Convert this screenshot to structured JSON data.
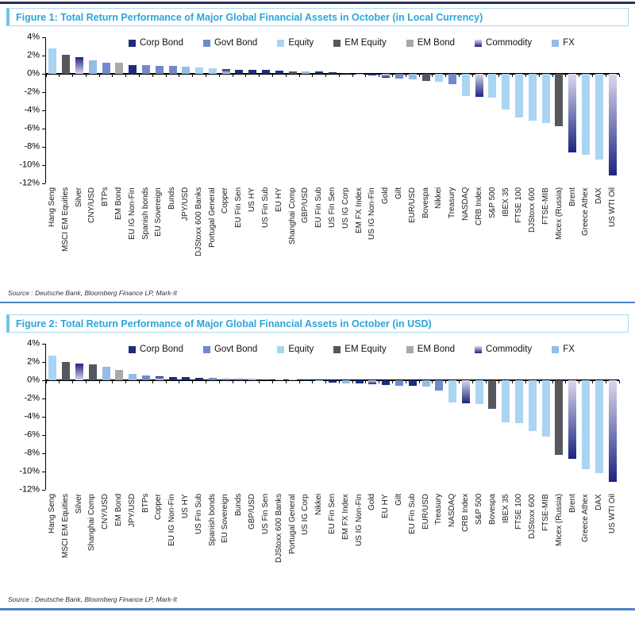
{
  "colors": {
    "Corp Bond": "#1c2e7b",
    "Govt Bond": "#7289cc",
    "Equity": "#aad5f2",
    "EM Equity": "#55575c",
    "EM Bond": "#a7a9ac",
    "Commodity": {
      "tip": "#1b2480",
      "base": "#dcd9ee"
    },
    "FX": "#94bce9"
  },
  "chart_data": [
    {
      "type": "bar",
      "title": "Figure 1: Total Return Performance of Major Global Financial Assets in October (in Local Currency)",
      "source": "Source : Deutsche Bank, Bloomberg Finance LP, Mark-It",
      "xlabel": "",
      "ylabel": "",
      "ylim": [
        -12,
        4
      ],
      "ytick_step": 2,
      "grid": false,
      "legend_position": "top",
      "legend": [
        "Corp Bond",
        "Govt Bond",
        "Equity",
        "EM Equity",
        "EM Bond",
        "Commodity",
        "FX"
      ],
      "bars": [
        {
          "label": "Hang Seng",
          "value": 2.8,
          "group": "Equity"
        },
        {
          "label": "MSCI EM Equities",
          "value": 2.1,
          "group": "EM Equity"
        },
        {
          "label": "Silver",
          "value": 1.8,
          "group": "Commodity"
        },
        {
          "label": "CNY/USD",
          "value": 1.5,
          "group": "FX"
        },
        {
          "label": "BTPs",
          "value": 1.25,
          "group": "Govt Bond"
        },
        {
          "label": "EM Bond",
          "value": 1.2,
          "group": "EM Bond"
        },
        {
          "label": "EU IG Non-Fin",
          "value": 1.0,
          "group": "Corp Bond"
        },
        {
          "label": "Spanish bonds",
          "value": 0.95,
          "group": "Govt Bond"
        },
        {
          "label": "EU Sovereign",
          "value": 0.9,
          "group": "Govt Bond"
        },
        {
          "label": "Bunds",
          "value": 0.9,
          "group": "Govt Bond"
        },
        {
          "label": "JPY/USD",
          "value": 0.75,
          "group": "FX"
        },
        {
          "label": "DJStoxx 600 Banks",
          "value": 0.7,
          "group": "Equity"
        },
        {
          "label": "Portugal General",
          "value": 0.65,
          "group": "Equity"
        },
        {
          "label": "Copper",
          "value": 0.5,
          "group": "Commodity"
        },
        {
          "label": "EU Fin Sen",
          "value": 0.45,
          "group": "Corp Bond"
        },
        {
          "label": "US HY",
          "value": 0.4,
          "group": "Corp Bond"
        },
        {
          "label": "US Fin Sub",
          "value": 0.4,
          "group": "Corp Bond"
        },
        {
          "label": "EU HY",
          "value": 0.35,
          "group": "Corp Bond"
        },
        {
          "label": "Shanghai Comp",
          "value": 0.3,
          "group": "EM Equity"
        },
        {
          "label": "GBP/USD",
          "value": 0.3,
          "group": "FX"
        },
        {
          "label": "EU Fin Sub",
          "value": 0.25,
          "group": "Corp Bond"
        },
        {
          "label": "US Fin Sen",
          "value": 0.2,
          "group": "Corp Bond"
        },
        {
          "label": "US IG Corp",
          "value": 0.1,
          "group": "Corp Bond"
        },
        {
          "label": "EM FX Index",
          "value": -0.1,
          "group": "FX"
        },
        {
          "label": "US IG Non-Fin",
          "value": -0.2,
          "group": "Corp Bond"
        },
        {
          "label": "Gold",
          "value": -0.4,
          "group": "Commodity"
        },
        {
          "label": "Gilt",
          "value": -0.5,
          "group": "Govt Bond"
        },
        {
          "label": "EUR/USD",
          "value": -0.6,
          "group": "FX"
        },
        {
          "label": "Bovespa",
          "value": -0.8,
          "group": "EM Equity"
        },
        {
          "label": "Nikkei",
          "value": -0.9,
          "group": "Equity"
        },
        {
          "label": "Treasury",
          "value": -1.1,
          "group": "Govt Bond"
        },
        {
          "label": "NASDAQ",
          "value": -2.4,
          "group": "Equity"
        },
        {
          "label": "CRB Index",
          "value": -2.5,
          "group": "Commodity"
        },
        {
          "label": "S&P 500",
          "value": -2.6,
          "group": "Equity"
        },
        {
          "label": "IBEX 35",
          "value": -3.9,
          "group": "Equity"
        },
        {
          "label": "FTSE 100",
          "value": -4.8,
          "group": "Equity"
        },
        {
          "label": "DJStoxx 600",
          "value": -5.1,
          "group": "Equity"
        },
        {
          "label": "FTSE-MIB",
          "value": -5.4,
          "group": "Equity"
        },
        {
          "label": "Micex (Russia)",
          "value": -5.7,
          "group": "EM Equity"
        },
        {
          "label": "Brent",
          "value": -8.6,
          "group": "Commodity"
        },
        {
          "label": "Greece Athex",
          "value": -8.9,
          "group": "Equity"
        },
        {
          "label": "DAX",
          "value": -9.4,
          "group": "Equity"
        },
        {
          "label": "US WTI Oil",
          "value": -11.1,
          "group": "Commodity"
        }
      ]
    },
    {
      "type": "bar",
      "title": "Figure 2: Total Return Performance of Major Global Financial Assets in October (in USD)",
      "source": "Source : Deutsche Bank, Bloomberg Finance LP, Mark-It",
      "xlabel": "",
      "ylabel": "",
      "ylim": [
        -12,
        4
      ],
      "ytick_step": 2,
      "grid": false,
      "legend_position": "top",
      "legend": [
        "Corp Bond",
        "Govt Bond",
        "Equity",
        "EM Equity",
        "EM Bond",
        "Commodity",
        "FX"
      ],
      "bars": [
        {
          "label": "Hang Seng",
          "value": 2.7,
          "group": "Equity"
        },
        {
          "label": "MSCI EM Equities",
          "value": 2.0,
          "group": "EM Equity"
        },
        {
          "label": "Silver",
          "value": 1.8,
          "group": "Commodity"
        },
        {
          "label": "Shanghai Comp",
          "value": 1.75,
          "group": "EM Equity"
        },
        {
          "label": "CNY/USD",
          "value": 1.5,
          "group": "FX"
        },
        {
          "label": "EM Bond",
          "value": 1.1,
          "group": "EM Bond"
        },
        {
          "label": "JPY/USD",
          "value": 0.7,
          "group": "FX"
        },
        {
          "label": "BTPs",
          "value": 0.5,
          "group": "Govt Bond"
        },
        {
          "label": "Copper",
          "value": 0.45,
          "group": "Commodity"
        },
        {
          "label": "EU IG Non-Fin",
          "value": 0.35,
          "group": "Corp Bond"
        },
        {
          "label": "US HY",
          "value": 0.35,
          "group": "Corp Bond"
        },
        {
          "label": "US Fin Sub",
          "value": 0.3,
          "group": "Corp Bond"
        },
        {
          "label": "Spanish bonds",
          "value": 0.25,
          "group": "Govt Bond"
        },
        {
          "label": "EU Sovereign",
          "value": 0.2,
          "group": "Govt Bond"
        },
        {
          "label": "Bunds",
          "value": 0.2,
          "group": "Govt Bond"
        },
        {
          "label": "GBP/USD",
          "value": 0.15,
          "group": "FX"
        },
        {
          "label": "US Fin Sen",
          "value": 0.1,
          "group": "Corp Bond"
        },
        {
          "label": "DJStoxx 600 Banks",
          "value": 0.05,
          "group": "Equity"
        },
        {
          "label": "Portugal General",
          "value": 0.05,
          "group": "Equity"
        },
        {
          "label": "US IG Corp",
          "value": -0.05,
          "group": "Corp Bond"
        },
        {
          "label": "Nikkei",
          "value": -0.1,
          "group": "Equity"
        },
        {
          "label": "EU Fin Sen",
          "value": -0.3,
          "group": "Corp Bond"
        },
        {
          "label": "EM FX Index",
          "value": -0.35,
          "group": "FX"
        },
        {
          "label": "US IG Non-Fin",
          "value": -0.35,
          "group": "Corp Bond"
        },
        {
          "label": "Gold",
          "value": -0.4,
          "group": "Commodity"
        },
        {
          "label": "EU HY",
          "value": -0.5,
          "group": "Corp Bond"
        },
        {
          "label": "Gilt",
          "value": -0.6,
          "group": "Govt Bond"
        },
        {
          "label": "EU Fin Sub",
          "value": -0.65,
          "group": "Corp Bond"
        },
        {
          "label": "EUR/USD",
          "value": -0.7,
          "group": "FX"
        },
        {
          "label": "Treasury",
          "value": -1.1,
          "group": "Govt Bond"
        },
        {
          "label": "NASDAQ",
          "value": -2.4,
          "group": "Equity"
        },
        {
          "label": "CRB Index",
          "value": -2.5,
          "group": "Commodity"
        },
        {
          "label": "S&P 500",
          "value": -2.6,
          "group": "Equity"
        },
        {
          "label": "Bovespa",
          "value": -3.1,
          "group": "EM Equity"
        },
        {
          "label": "IBEX 35",
          "value": -4.6,
          "group": "Equity"
        },
        {
          "label": "FTSE 100",
          "value": -4.7,
          "group": "Equity"
        },
        {
          "label": "DJStoxx 600",
          "value": -5.6,
          "group": "Equity"
        },
        {
          "label": "FTSE-MIB",
          "value": -6.2,
          "group": "Equity"
        },
        {
          "label": "Micex (Russia)",
          "value": -8.2,
          "group": "EM Equity"
        },
        {
          "label": "Brent",
          "value": -8.6,
          "group": "Commodity"
        },
        {
          "label": "Greece Athex",
          "value": -9.7,
          "group": "Equity"
        },
        {
          "label": "DAX",
          "value": -10.2,
          "group": "Equity"
        },
        {
          "label": "US WTI Oil",
          "value": -11.1,
          "group": "Commodity"
        }
      ]
    }
  ]
}
